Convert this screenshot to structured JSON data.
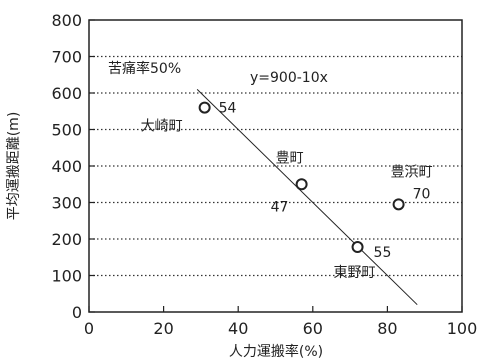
{
  "chart_data": {
    "type": "scatter",
    "xlabel": "人力運搬率(%)",
    "ylabel": "平均運搬距離(m)",
    "xlim": [
      0,
      100
    ],
    "ylim": [
      0,
      800
    ],
    "xticks": [
      0,
      20,
      40,
      60,
      80,
      100
    ],
    "yticks": [
      0,
      100,
      200,
      300,
      400,
      500,
      600,
      700,
      800
    ],
    "grid": "horizontal-dotted",
    "points": [
      {
        "name": "大崎町",
        "x": 31,
        "y": 560,
        "value_label": "54"
      },
      {
        "name": "豊町",
        "x": 57,
        "y": 350,
        "value_label": "47"
      },
      {
        "name": "豊浜町",
        "x": 83,
        "y": 295,
        "value_label": "70"
      },
      {
        "name": "東野町",
        "x": 72,
        "y": 178,
        "value_label": "55"
      }
    ],
    "trendline": {
      "label": "y=900-10x",
      "x_start": 29,
      "x_end": 88
    },
    "annotation": "苦痛率50%"
  }
}
